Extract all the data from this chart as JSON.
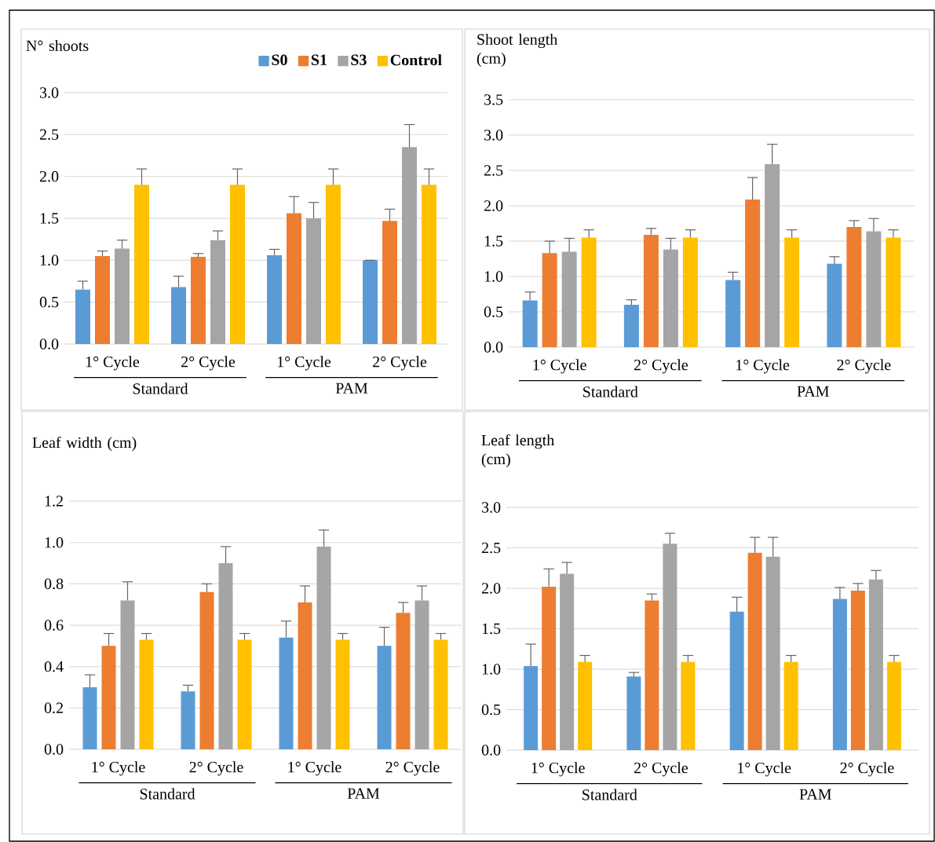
{
  "chart_data": [
    {
      "type": "bar",
      "title": "N° shoots",
      "categories": [
        "1° Cycle",
        "2° Cycle",
        "1° Cycle",
        "2° Cycle"
      ],
      "annotations": [
        "Standard",
        "PAM"
      ],
      "ylim": [
        0,
        3
      ],
      "yticks": [
        {
          "value": 0,
          "label": "0.0"
        },
        {
          "value": 0.5,
          "label": "0.5"
        },
        {
          "value": 1,
          "label": "1.0"
        },
        {
          "value": 1.5,
          "label": "1.5"
        },
        {
          "value": 2,
          "label": "2.0"
        },
        {
          "value": 2.5,
          "label": "2.5"
        },
        {
          "value": 3,
          "label": "3.0"
        }
      ],
      "grid": "y",
      "legend": "top right",
      "series": [
        {
          "name": "S0",
          "color": "#5b9bd5",
          "values": [
            0.65,
            0.68,
            1.06,
            1.0
          ],
          "errors": [
            [
              0.65,
              0.75
            ],
            [
              0.68,
              0.81
            ],
            [
              1.06,
              1.13
            ],
            [
              1.0,
              1.0
            ]
          ]
        },
        {
          "name": "S1",
          "color": "#ed7d31",
          "values": [
            1.05,
            1.04,
            1.56,
            1.47
          ],
          "errors": [
            [
              1.05,
              1.11
            ],
            [
              1.04,
              1.08
            ],
            [
              1.56,
              1.76
            ],
            [
              1.47,
              1.61
            ]
          ]
        },
        {
          "name": "S3",
          "color": "#a5a5a5",
          "values": [
            1.14,
            1.24,
            1.5,
            2.35
          ],
          "errors": [
            [
              1.14,
              1.24
            ],
            [
              1.24,
              1.35
            ],
            [
              1.5,
              1.69
            ],
            [
              2.35,
              2.62
            ]
          ]
        },
        {
          "name": "Control",
          "color": "#ffc000",
          "values": [
            1.9,
            1.9,
            1.9,
            1.9
          ],
          "errors": [
            [
              1.9,
              2.09
            ],
            [
              1.9,
              2.09
            ],
            [
              1.9,
              2.09
            ],
            [
              1.9,
              2.09
            ]
          ]
        }
      ]
    },
    {
      "type": "bar",
      "title": "Shoot length (cm)",
      "categories": [
        "1° Cycle",
        "2° Cycle",
        "1° Cycle",
        "2° Cycle"
      ],
      "annotations": [
        "Standard",
        "PAM"
      ],
      "ylim": [
        0,
        3.5
      ],
      "yticks": [
        {
          "value": 0,
          "label": "0.0"
        },
        {
          "value": 0.5,
          "label": "0.5"
        },
        {
          "value": 1,
          "label": "1.0"
        },
        {
          "value": 1.5,
          "label": "1.5"
        },
        {
          "value": 2,
          "label": "2.0"
        },
        {
          "value": 2.5,
          "label": "2.5"
        },
        {
          "value": 3,
          "label": "3.0"
        },
        {
          "value": 3.5,
          "label": "3.5"
        }
      ],
      "grid": "y",
      "series": [
        {
          "color": "#5b9bd5",
          "values": [
            0.66,
            0.6,
            0.95,
            1.18
          ],
          "errors": [
            [
              0.66,
              0.78
            ],
            [
              0.6,
              0.67
            ],
            [
              0.95,
              1.06
            ],
            [
              1.18,
              1.28
            ]
          ]
        },
        {
          "color": "#ed7d31",
          "values": [
            1.33,
            1.59,
            2.09,
            1.7
          ],
          "errors": [
            [
              1.33,
              1.5
            ],
            [
              1.59,
              1.68
            ],
            [
              2.09,
              2.4
            ],
            [
              1.7,
              1.79
            ]
          ]
        },
        {
          "color": "#a5a5a5",
          "values": [
            1.35,
            1.38,
            2.59,
            1.64
          ],
          "errors": [
            [
              1.35,
              1.54
            ],
            [
              1.38,
              1.54
            ],
            [
              2.59,
              2.87
            ],
            [
              1.64,
              1.82
            ]
          ]
        },
        {
          "color": "#ffc000",
          "values": [
            1.55,
            1.55,
            1.55,
            1.55
          ],
          "errors": [
            [
              1.55,
              1.66
            ],
            [
              1.55,
              1.66
            ],
            [
              1.55,
              1.66
            ],
            [
              1.55,
              1.66
            ]
          ]
        }
      ]
    },
    {
      "type": "bar",
      "title": "Leaf width (cm)",
      "categories": [
        "1° Cycle",
        "2° Cycle",
        "1° Cycle",
        "2° Cycle"
      ],
      "annotations": [
        "Standard",
        "PAM"
      ],
      "ylim": [
        0,
        1.2
      ],
      "yticks": [
        {
          "value": 0,
          "label": "0.0"
        },
        {
          "value": 0.2,
          "label": "0.2"
        },
        {
          "value": 0.4,
          "label": "0.4"
        },
        {
          "value": 0.6,
          "label": "0.6"
        },
        {
          "value": 0.8,
          "label": "0.8"
        },
        {
          "value": 1,
          "label": "1.0"
        },
        {
          "value": 1.2,
          "label": "1.2"
        }
      ],
      "grid": "y",
      "series": [
        {
          "color": "#5b9bd5",
          "values": [
            0.3,
            0.28,
            0.54,
            0.5
          ],
          "errors": [
            [
              0.3,
              0.36
            ],
            [
              0.28,
              0.31
            ],
            [
              0.54,
              0.62
            ],
            [
              0.5,
              0.59
            ]
          ]
        },
        {
          "color": "#ed7d31",
          "values": [
            0.5,
            0.76,
            0.71,
            0.66
          ],
          "errors": [
            [
              0.5,
              0.56
            ],
            [
              0.76,
              0.8
            ],
            [
              0.71,
              0.79
            ],
            [
              0.66,
              0.71
            ]
          ]
        },
        {
          "color": "#a5a5a5",
          "values": [
            0.72,
            0.9,
            0.98,
            0.72
          ],
          "errors": [
            [
              0.72,
              0.81
            ],
            [
              0.9,
              0.98
            ],
            [
              0.98,
              1.06
            ],
            [
              0.72,
              0.79
            ]
          ]
        },
        {
          "color": "#ffc000",
          "values": [
            0.53,
            0.53,
            0.53,
            0.53
          ],
          "errors": [
            [
              0.53,
              0.56
            ],
            [
              0.53,
              0.56
            ],
            [
              0.53,
              0.56
            ],
            [
              0.53,
              0.56
            ]
          ]
        }
      ]
    },
    {
      "type": "bar",
      "title": "Leaf length (cm)",
      "categories": [
        "1° Cycle",
        "2° Cycle",
        "1° Cycle",
        "2° Cycle"
      ],
      "annotations": [
        "Standard",
        "PAM"
      ],
      "ylim": [
        0,
        3
      ],
      "yticks": [
        {
          "value": 0,
          "label": "0.0"
        },
        {
          "value": 0.5,
          "label": "0.5"
        },
        {
          "value": 1,
          "label": "1.0"
        },
        {
          "value": 1.5,
          "label": "1.5"
        },
        {
          "value": 2,
          "label": "2.0"
        },
        {
          "value": 2.5,
          "label": "2.5"
        },
        {
          "value": 3,
          "label": "3.0"
        }
      ],
      "grid": "y",
      "series": [
        {
          "color": "#5b9bd5",
          "values": [
            1.04,
            0.91,
            1.71,
            1.87
          ],
          "errors": [
            [
              1.04,
              1.31
            ],
            [
              0.91,
              0.96
            ],
            [
              1.71,
              1.89
            ],
            [
              1.87,
              2.01
            ]
          ]
        },
        {
          "color": "#ed7d31",
          "values": [
            2.02,
            1.85,
            2.44,
            1.97
          ],
          "errors": [
            [
              2.02,
              2.24
            ],
            [
              1.85,
              1.93
            ],
            [
              2.44,
              2.63
            ],
            [
              1.97,
              2.06
            ]
          ]
        },
        {
          "color": "#a5a5a5",
          "values": [
            2.18,
            2.55,
            2.39,
            2.11
          ],
          "errors": [
            [
              2.18,
              2.32
            ],
            [
              2.55,
              2.68
            ],
            [
              2.39,
              2.63
            ],
            [
              2.11,
              2.22
            ]
          ]
        },
        {
          "color": "#ffc000",
          "values": [
            1.09,
            1.09,
            1.09,
            1.09
          ],
          "errors": [
            [
              1.09,
              1.17
            ],
            [
              1.09,
              1.17
            ],
            [
              1.09,
              1.17
            ],
            [
              1.09,
              1.17
            ]
          ]
        }
      ]
    }
  ]
}
